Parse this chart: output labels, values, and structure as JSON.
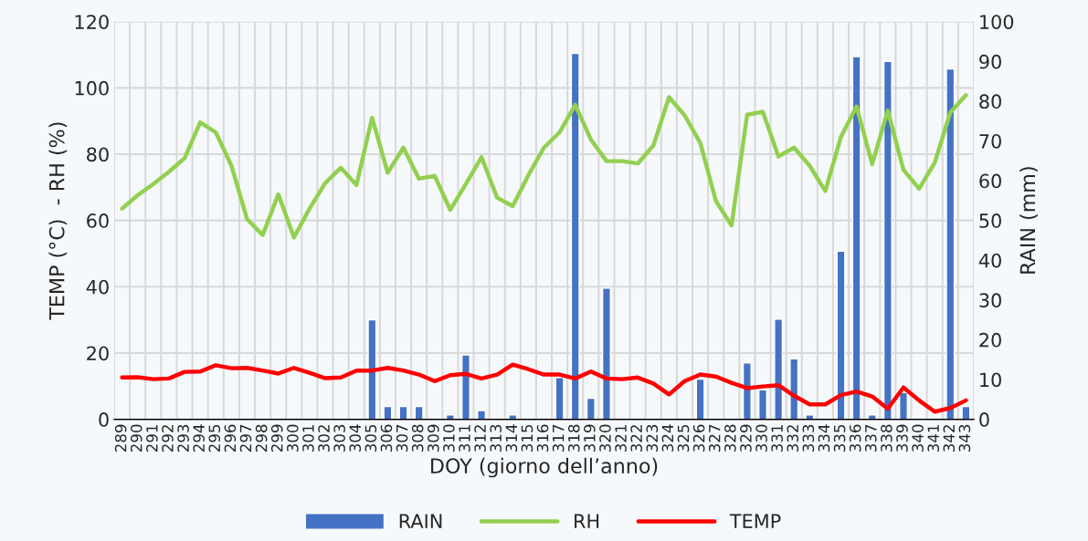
{
  "chart_data": {
    "type": "bar",
    "xlabel": "DOY (giorno dell’anno)",
    "ylabel": "TEMP (°C)  - RH (%)",
    "y2label": "RAIN (mm)",
    "categories": [
      "289",
      "290",
      "291",
      "292",
      "293",
      "294",
      "295",
      "296",
      "297",
      "298",
      "299",
      "300",
      "301",
      "302",
      "303",
      "304",
      "305",
      "306",
      "307",
      "308",
      "309",
      "310",
      "311",
      "312",
      "313",
      "314",
      "315",
      "316",
      "317",
      "318",
      "319",
      "320",
      "321",
      "322",
      "323",
      "324",
      "325",
      "326",
      "327",
      "328",
      "329",
      "330",
      "331",
      "332",
      "333",
      "334",
      "335",
      "336",
      "337",
      "338",
      "339",
      "340",
      "341",
      "342",
      "343"
    ],
    "series": [
      {
        "name": "RAIN",
        "axis": "y2",
        "color": "#4472c4",
        "values": [
          null,
          null,
          null,
          null,
          null,
          null,
          null,
          null,
          null,
          null,
          null,
          null,
          null,
          null,
          null,
          null,
          25,
          3.2,
          3.2,
          3.2,
          null,
          1.1,
          16.2,
          2.2,
          null,
          1.1,
          null,
          null,
          10.5,
          92,
          5.3,
          33,
          null,
          null,
          null,
          null,
          null,
          10.1,
          null,
          null,
          14.2,
          7.4,
          25.2,
          15.2,
          1.1,
          null,
          42.3,
          91.2,
          1.1,
          90,
          6.7,
          null,
          null,
          88.1,
          3.2
        ]
      },
      {
        "name": "RH",
        "type": "line",
        "color": "#92d050",
        "values": [
          63.6,
          67.6,
          71.0,
          74.7,
          78.8,
          89.6,
          86.6,
          76.5,
          60.4,
          55.6,
          67.9,
          54.9,
          63.6,
          71.3,
          75.9,
          70.7,
          91.0,
          74.4,
          82.0,
          72.6,
          73.5,
          63.2,
          71.0,
          79.1,
          66.9,
          64.3,
          73.7,
          82.0,
          86.6,
          94.9,
          84.4,
          77.9,
          77.9,
          77.2,
          82.6,
          97.2,
          91.7,
          83.4,
          65.9,
          58.5,
          91.9,
          92.8,
          79.3,
          82.0,
          76.5,
          68.9,
          85.2,
          94.4,
          77.0,
          93.2,
          75.3,
          69.6,
          77.4,
          92.6,
          97.8
        ]
      },
      {
        "name": "TEMP",
        "type": "line",
        "color": "#ff0000",
        "values": [
          12.6,
          12.7,
          12.1,
          12.3,
          14.3,
          14.4,
          16.3,
          15.4,
          15.5,
          14.7,
          13.8,
          15.5,
          14.0,
          12.4,
          12.6,
          14.7,
          14.7,
          15.5,
          14.7,
          13.5,
          11.5,
          13.3,
          13.7,
          12.3,
          13.5,
          16.5,
          15.1,
          13.5,
          13.5,
          12.3,
          14.4,
          12.3,
          12.1,
          12.6,
          10.8,
          7.5,
          11.5,
          13.5,
          12.9,
          11.0,
          9.4,
          9.9,
          10.3,
          7.1,
          4.5,
          4.5,
          7.3,
          8.4,
          6.9,
          3.2,
          9.6,
          5.7,
          2.3,
          3.4,
          5.7
        ]
      }
    ],
    "ylim": [
      0,
      120
    ],
    "yticks": [
      0,
      20,
      40,
      60,
      80,
      100,
      120
    ],
    "y2lim": [
      0,
      100
    ],
    "y2ticks": [
      0,
      10,
      20,
      30,
      40,
      50,
      60,
      70,
      80,
      90,
      100
    ],
    "grid": true,
    "legend": "bottom"
  }
}
